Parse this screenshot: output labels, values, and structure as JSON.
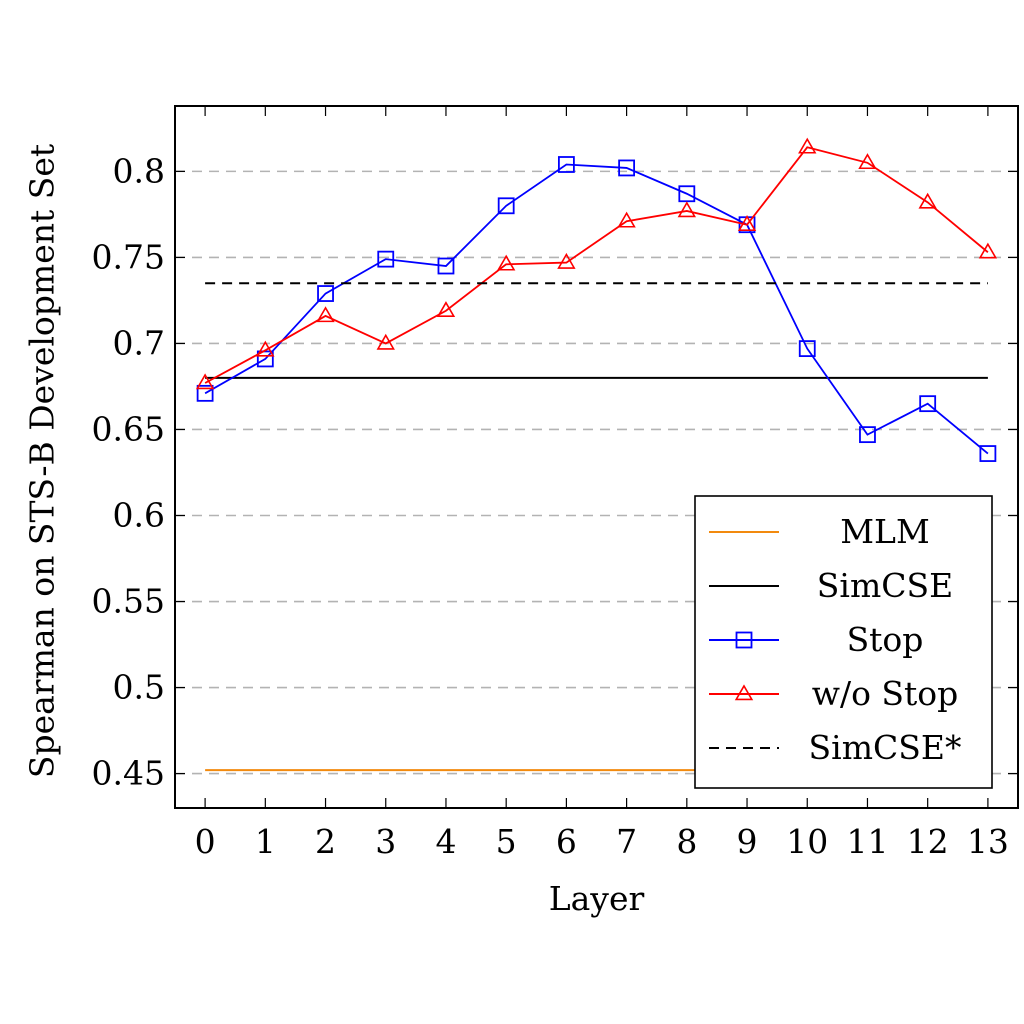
{
  "chart_data": {
    "type": "line",
    "xlabel": "Layer",
    "ylabel": "Spearman on STS-B Development Set",
    "x": [
      0,
      1,
      2,
      3,
      4,
      5,
      6,
      7,
      8,
      9,
      10,
      11,
      12,
      13
    ],
    "xlim": [
      -0.5,
      13.5
    ],
    "ylim": [
      0.43,
      0.838
    ],
    "yticks": [
      0.45,
      0.5,
      0.55,
      0.6,
      0.65,
      0.7,
      0.75,
      0.8
    ],
    "ytick_labels": [
      "0.45",
      "0.5",
      "0.55",
      "0.6",
      "0.65",
      "0.7",
      "0.75",
      "0.8"
    ],
    "grid": "horizontal dashed",
    "legend_position": "bottom-right",
    "series": [
      {
        "name": "MLM",
        "kind": "hline",
        "value": 0.452,
        "color": "#f28a0e",
        "style": "solid",
        "marker": "none"
      },
      {
        "name": "SimCSE",
        "kind": "hline",
        "value": 0.68,
        "color": "#000000",
        "style": "solid",
        "marker": "none"
      },
      {
        "name": "Stop",
        "kind": "line",
        "color": "#0000ff",
        "style": "solid",
        "marker": "square",
        "values": [
          0.671,
          0.691,
          0.729,
          0.749,
          0.745,
          0.78,
          0.804,
          0.802,
          0.787,
          0.769,
          0.697,
          0.647,
          0.665,
          0.636
        ]
      },
      {
        "name": "w/o Stop",
        "kind": "line",
        "color": "#ff0000",
        "style": "solid",
        "marker": "triangle",
        "values": [
          0.677,
          0.696,
          0.716,
          0.7,
          0.719,
          0.746,
          0.747,
          0.771,
          0.777,
          0.769,
          0.814,
          0.805,
          0.782,
          0.753
        ]
      },
      {
        "name": "SimCSE*",
        "kind": "hline",
        "value": 0.735,
        "color": "#000000",
        "style": "dashed",
        "marker": "none"
      }
    ]
  }
}
